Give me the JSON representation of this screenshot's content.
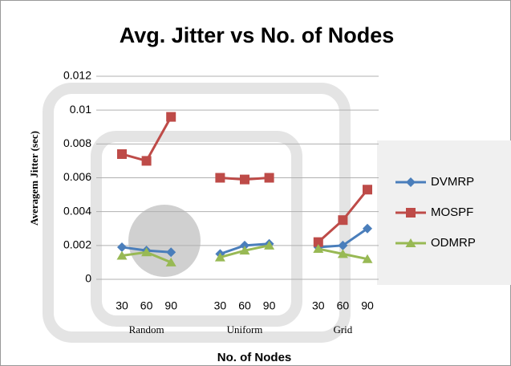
{
  "chart_data": {
    "type": "line",
    "title": "Avg. Jitter vs No. of Nodes",
    "ylabel": "Averagem Jitter (sec)",
    "xlabel": "No. of Nodes",
    "categories": [
      "30",
      "60",
      "90",
      null,
      "30",
      "60",
      "90",
      null,
      "30",
      "60",
      "90"
    ],
    "groups": [
      "Random",
      "Uniform",
      "Grid"
    ],
    "series": [
      {
        "name": "DVMRP",
        "color": "#4a7ebb",
        "marker": "diamond",
        "values": [
          0.0019,
          0.0017,
          0.0016,
          null,
          0.0015,
          0.002,
          0.0021,
          null,
          0.0019,
          0.002,
          0.003
        ]
      },
      {
        "name": "MOSPF",
        "color": "#be4b48",
        "marker": "square",
        "values": [
          0.0074,
          0.007,
          0.0096,
          null,
          0.006,
          0.0059,
          0.006,
          null,
          0.0022,
          0.0035,
          0.0053
        ]
      },
      {
        "name": "ODMRP",
        "color": "#98b954",
        "marker": "triangle",
        "values": [
          0.0014,
          0.0016,
          0.001,
          null,
          0.0013,
          0.0017,
          0.002,
          null,
          0.0018,
          0.0015,
          0.0012
        ]
      }
    ],
    "ylim": [
      0,
      0.012
    ],
    "yticks": [
      0,
      0.002,
      0.004,
      0.006,
      0.008,
      0.01,
      0.012
    ],
    "grid": true,
    "legend": "right"
  }
}
